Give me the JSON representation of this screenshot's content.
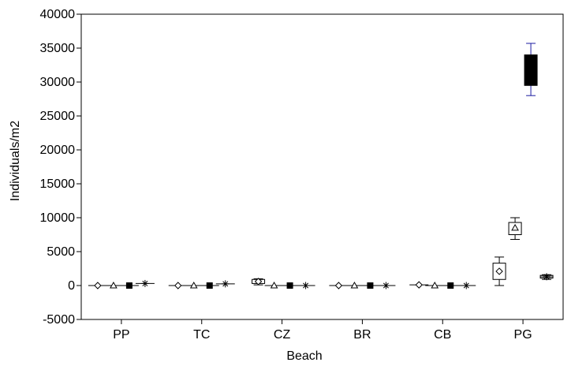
{
  "chart_data": {
    "type": "box",
    "xlabel": "Beach",
    "ylabel": "Individuals/m2",
    "ylim": [
      -5000,
      40000
    ],
    "yticks": [
      -5000,
      0,
      5000,
      10000,
      15000,
      20000,
      25000,
      30000,
      35000,
      40000
    ],
    "ytick_labels": [
      "-5000",
      "0",
      "5000",
      "10000",
      "15000",
      "20000",
      "25000",
      "30000",
      "35000",
      "40000"
    ],
    "categories": [
      "PP",
      "TC",
      "CZ",
      "BR",
      "CB",
      "PG"
    ],
    "grid": false,
    "legend": "none",
    "series": [
      {
        "marker": "diamond",
        "box_fill": "#ffffff",
        "boxes": [
          {
            "min": 0,
            "q1": 0,
            "median": 0,
            "q3": 0,
            "max": 0
          },
          {
            "min": 0,
            "q1": 0,
            "median": 0,
            "q3": 0,
            "max": 0
          },
          {
            "min": 100,
            "q1": 300,
            "median": 600,
            "q3": 900,
            "max": 1000
          },
          {
            "min": 0,
            "q1": 0,
            "median": 0,
            "q3": 0,
            "max": 0
          },
          {
            "min": 50,
            "q1": 80,
            "median": 100,
            "q3": 130,
            "max": 150
          },
          {
            "min": 0,
            "q1": 900,
            "median": 2100,
            "q3": 3300,
            "max": 4200
          }
        ]
      },
      {
        "marker": "triangle",
        "box_fill": "#ffffff",
        "boxes": [
          {
            "min": 0,
            "q1": 0,
            "median": 0,
            "q3": 0,
            "max": 0
          },
          {
            "min": 0,
            "q1": 0,
            "median": 0,
            "q3": 0,
            "max": 0
          },
          {
            "min": 0,
            "q1": 0,
            "median": 0,
            "q3": 0,
            "max": 0
          },
          {
            "min": 0,
            "q1": 0,
            "median": 0,
            "q3": 0,
            "max": 0
          },
          {
            "min": 0,
            "q1": 0,
            "median": 0,
            "q3": 0,
            "max": 0
          },
          {
            "min": 6800,
            "q1": 7500,
            "median": 8500,
            "q3": 9300,
            "max": 10000
          }
        ]
      },
      {
        "marker": "square",
        "box_fill": "#000000",
        "boxes": [
          {
            "min": 0,
            "q1": 0,
            "median": 0,
            "q3": 0,
            "max": 0
          },
          {
            "min": 0,
            "q1": 0,
            "median": 0,
            "q3": 0,
            "max": 0
          },
          {
            "min": 0,
            "q1": 0,
            "median": 0,
            "q3": 0,
            "max": 0
          },
          {
            "min": 0,
            "q1": 0,
            "median": 0,
            "q3": 0,
            "max": 0
          },
          {
            "min": 0,
            "q1": 0,
            "median": 0,
            "q3": 0,
            "max": 0
          },
          {
            "min": 28000,
            "q1": 29500,
            "median": 31800,
            "q3": 34000,
            "max": 35700
          }
        ]
      },
      {
        "marker": "asterisk",
        "box_fill": "#999999",
        "boxes": [
          {
            "min": 200,
            "q1": 250,
            "median": 300,
            "q3": 350,
            "max": 400
          },
          {
            "min": 150,
            "q1": 200,
            "median": 250,
            "q3": 300,
            "max": 350
          },
          {
            "min": 0,
            "q1": 0,
            "median": 0,
            "q3": 0,
            "max": 0
          },
          {
            "min": 0,
            "q1": 0,
            "median": 0,
            "q3": 0,
            "max": 0
          },
          {
            "min": 0,
            "q1": 0,
            "median": 0,
            "q3": 0,
            "max": 0
          },
          {
            "min": 900,
            "q1": 1100,
            "median": 1300,
            "q3": 1500,
            "max": 1600
          }
        ]
      }
    ],
    "colors": {
      "axis": "#000000",
      "whisker_highlight": "#1a1aa0"
    }
  }
}
